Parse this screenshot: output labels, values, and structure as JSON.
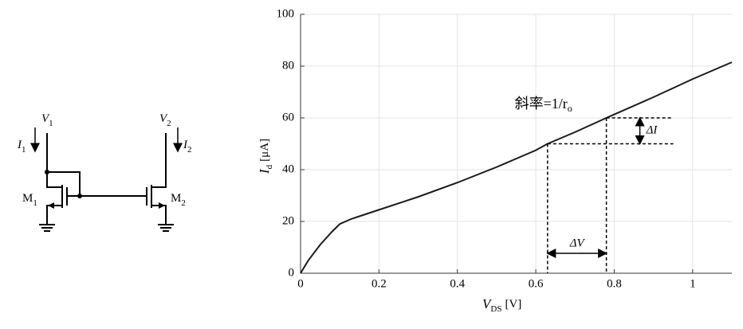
{
  "circuit": {
    "labels": [
      {
        "text": "V",
        "sub": "1"
      },
      {
        "text": "I",
        "sub": "1"
      },
      {
        "text": "M",
        "sub": "1"
      },
      {
        "text": "V",
        "sub": "2"
      },
      {
        "text": "I",
        "sub": "2"
      },
      {
        "text": "M",
        "sub": "2"
      }
    ]
  },
  "chart_data": {
    "type": "line",
    "xlabel": {
      "symbol": "V",
      "subscript": "DS",
      "unit": "[V]"
    },
    "ylabel": {
      "symbol": "I",
      "subscript": "d",
      "unit": "[μA]"
    },
    "series": [
      {
        "color": "#1a1a1a",
        "x": [
          0,
          0.02,
          0.05,
          0.08,
          0.1,
          0.13,
          0.15,
          0.2,
          0.3,
          0.4,
          0.5,
          0.6,
          0.63,
          0.7,
          0.78,
          0.9,
          1.0,
          1.1
        ],
        "values": [
          0,
          5,
          11,
          16,
          19,
          21,
          22,
          24.5,
          29.5,
          35,
          41,
          47.5,
          50,
          54.5,
          60,
          68,
          75,
          81.5
        ]
      }
    ],
    "xlim": [
      0,
      1.1
    ],
    "ylim": [
      0,
      100
    ],
    "xticks": [
      0,
      0.2,
      0.4,
      0.6,
      0.8,
      1
    ],
    "yticks": [
      0,
      20,
      40,
      60,
      80,
      100
    ],
    "grid": true,
    "slope_annotation": {
      "text": "斜率=1/r",
      "sub": "o"
    },
    "delta_v": {
      "label": "ΔV",
      "x": [
        0.63,
        0.78
      ]
    },
    "delta_i": {
      "label": "ΔI",
      "y": [
        50,
        60
      ]
    }
  }
}
